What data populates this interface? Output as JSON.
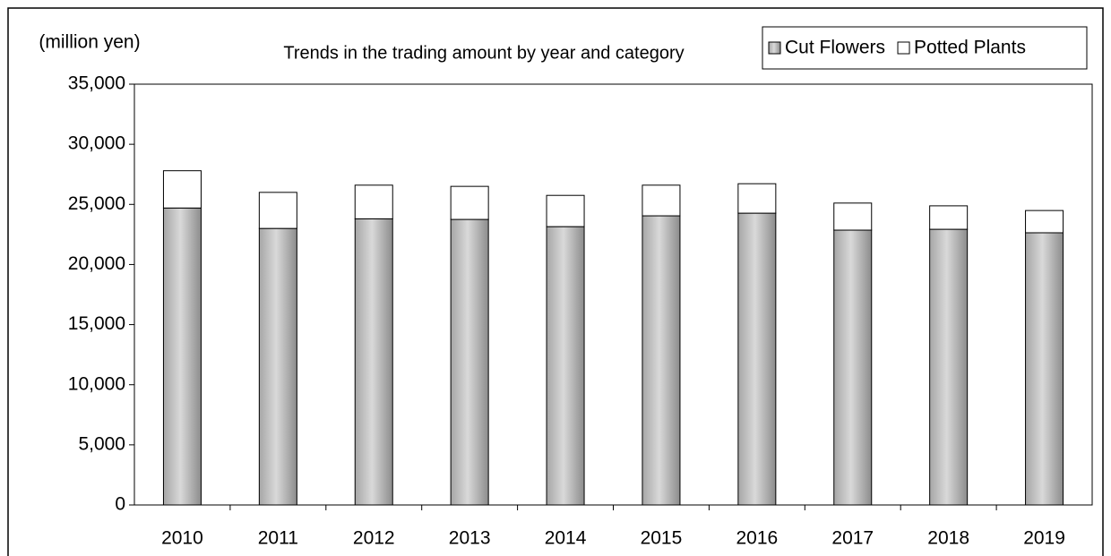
{
  "chart_data": {
    "type": "stacked_bar",
    "title": "Trends in the trading amount by year and category",
    "y_label": "(million yen)",
    "categories": [
      "2010",
      "2011",
      "2012",
      "2013",
      "2014",
      "2015",
      "2016",
      "2017",
      "2018",
      "2019"
    ],
    "series": [
      {
        "name": "Cut Flowers",
        "color": "#d9d9d9",
        "values": [
          24700,
          23000,
          23800,
          23750,
          23150,
          24050,
          24270,
          22860,
          22930,
          22640
        ]
      },
      {
        "name": "Potted Plants",
        "color": "#ffffff",
        "values": [
          3100,
          3000,
          2800,
          2750,
          2600,
          2550,
          2450,
          2250,
          1950,
          1850
        ]
      }
    ],
    "ylim": [
      0,
      35000
    ],
    "yticks": [
      0,
      {
        "value": 5000,
        "label": "5,000"
      },
      {
        "value": 10000,
        "label": "10,000"
      },
      {
        "value": 15000,
        "label": "15,000"
      },
      {
        "value": 20000,
        "label": "20,000"
      },
      {
        "value": 25000,
        "label": "25,000"
      },
      {
        "value": 30000,
        "label": "30,000"
      },
      {
        "value": 35000,
        "label": "35,000"
      }
    ],
    "legend": "top-right"
  }
}
